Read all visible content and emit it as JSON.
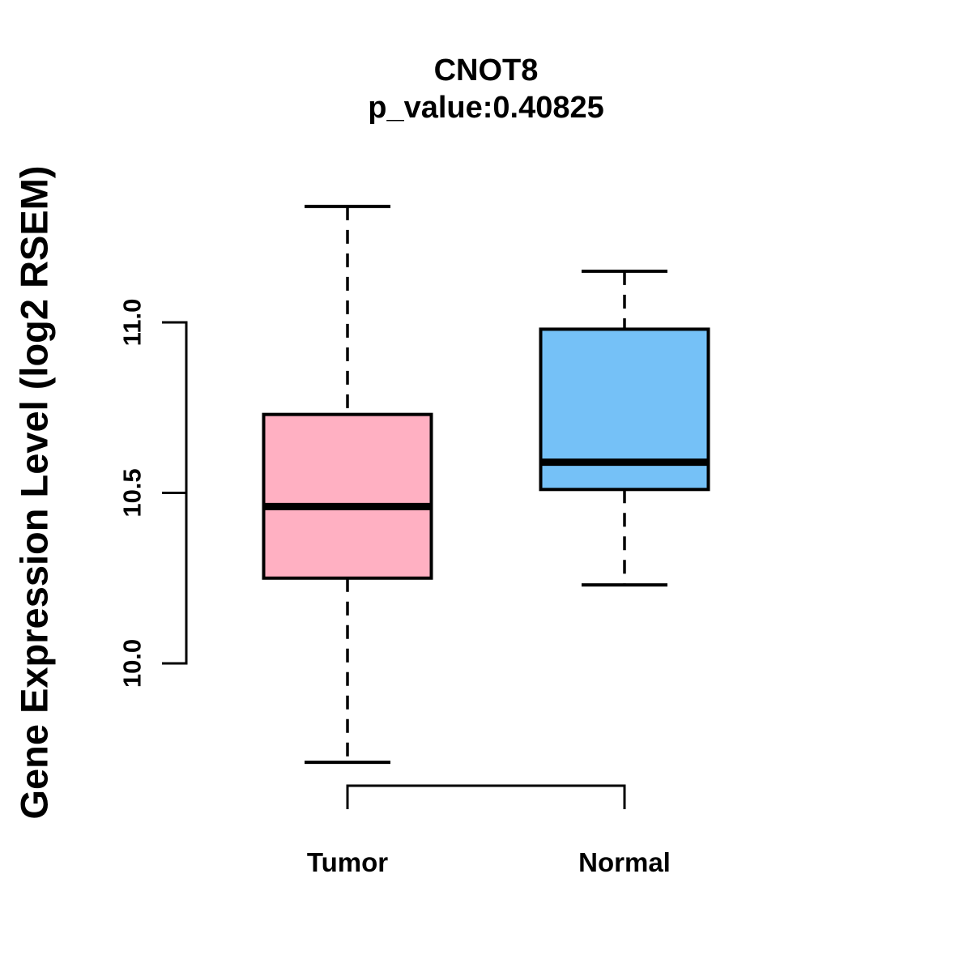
{
  "chart_data": {
    "type": "boxplot",
    "title": "CNOT8",
    "subtitle": "p_value:0.40825",
    "ylabel": "Gene Expression Level (log2 RSEM)",
    "categories": [
      "Tumor",
      "Normal"
    ],
    "ytick_labels": [
      "10.0",
      "10.5",
      "11.0"
    ],
    "ytick_values": [
      10.0,
      10.5,
      11.0
    ],
    "ylim_visible": [
      9.6,
      11.4
    ],
    "grid": false,
    "legend": "none",
    "stroke_color": "#000000",
    "background_color": "#FFFFFF",
    "series": [
      {
        "name": "Tumor",
        "fill_color": "#FFB0C2",
        "whisker_low": 9.71,
        "q1": 10.25,
        "median": 10.46,
        "q3": 10.73,
        "whisker_high": 11.34
      },
      {
        "name": "Normal",
        "fill_color": "#75C1F7",
        "whisker_low": 10.23,
        "q1": 10.51,
        "median": 10.59,
        "q3": 10.98,
        "whisker_high": 11.15
      }
    ]
  }
}
